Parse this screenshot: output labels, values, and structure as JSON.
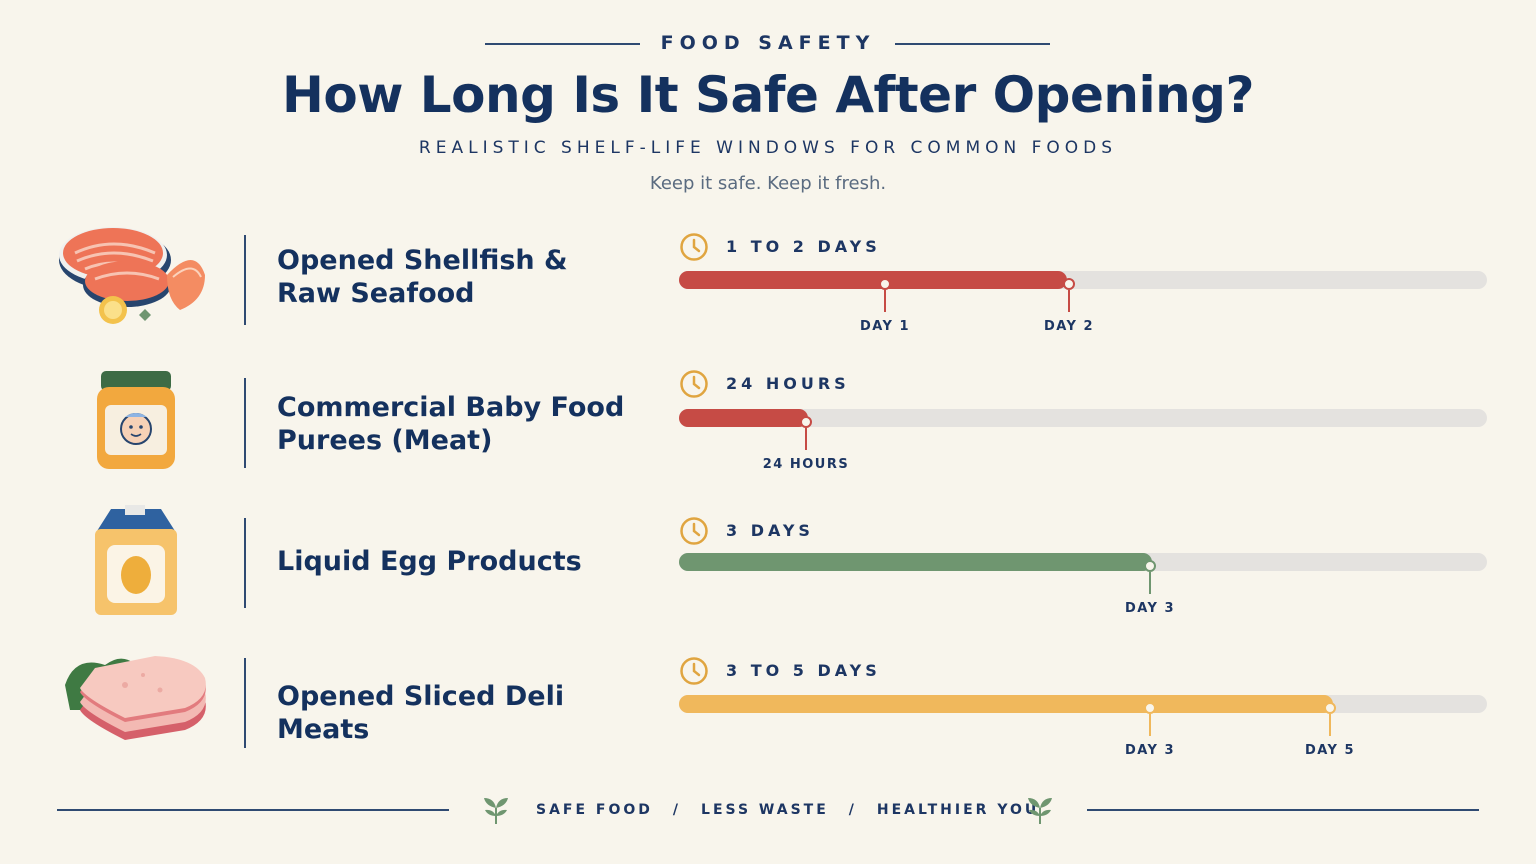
{
  "header": {
    "eyebrow": "FOOD SAFETY",
    "title": "How Long Is It Safe After Opening?",
    "subtitle": "REALISTIC SHELF-LIFE WINDOWS FOR COMMON FOODS",
    "tagline": "Keep it safe. Keep it fresh."
  },
  "colors": {
    "navy": "#14315e",
    "red": "#c64b45",
    "green": "#6f9670",
    "amber": "#f0b85c",
    "track": "#e4e2df",
    "clock": "#e0a540"
  },
  "items": [
    {
      "name_line1": "Opened Shellfish &",
      "name_line2": "Raw Seafood",
      "icon": "salmon-shrimp-icon",
      "duration": "1 TO 2 DAYS",
      "color": "red",
      "fill_fraction": 0.48,
      "markers": [
        {
          "label": "DAY 1",
          "position_fraction": 0.255
        },
        {
          "label": "DAY 2",
          "position_fraction": 0.483
        }
      ]
    },
    {
      "name_line1": "Commercial Baby Food",
      "name_line2": "Purees (Meat)",
      "icon": "baby-food-jar-icon",
      "duration": "24 HOURS",
      "color": "red",
      "fill_fraction": 0.16,
      "markers": [
        {
          "label": "24 HOURS",
          "position_fraction": 0.157
        }
      ]
    },
    {
      "name_line1": "Liquid Egg Products",
      "name_line2": "",
      "icon": "egg-carton-icon",
      "duration": "3 DAYS",
      "color": "green",
      "fill_fraction": 0.585,
      "markers": [
        {
          "label": "DAY 3",
          "position_fraction": 0.583
        }
      ]
    },
    {
      "name_line1": "Opened Sliced Deli Meats",
      "name_line2": "",
      "icon": "deli-meat-icon",
      "duration": "3 TO 5 DAYS",
      "color": "amber",
      "fill_fraction": 0.81,
      "markers": [
        {
          "label": "DAY 3",
          "position_fraction": 0.583
        },
        {
          "label": "DAY 5",
          "position_fraction": 0.806
        }
      ]
    }
  ],
  "footer": {
    "part1": "SAFE FOOD",
    "part2": "LESS WASTE",
    "part3": "HEALTHIER YOU",
    "separator": "/"
  }
}
